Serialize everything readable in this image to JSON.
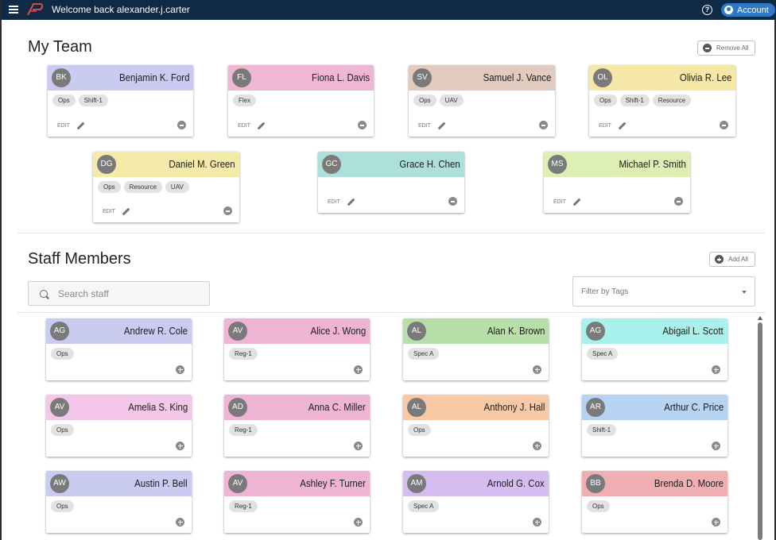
{
  "topbar": {
    "welcome": "Welcome back alexander.j.carter",
    "help_symbol": "?",
    "account_label": "Account",
    "bg_color": "#0f2a45",
    "accent": "#2f78c4"
  },
  "team": {
    "title": "My Team",
    "remove_all_label": "Remove All",
    "edit_label": "EDIT",
    "members": [
      {
        "initials": "BK",
        "name": "Benjamin K. Ford",
        "color": "#c9cbf0",
        "tags": [
          "Ops",
          "Shift-1"
        ]
      },
      {
        "initials": "FL",
        "name": "Fiona L. Davis",
        "color": "#efb6d6",
        "tags": [
          "Flex"
        ]
      },
      {
        "initials": "SV",
        "name": "Samuel J. Vance",
        "color": "#e1cbbf",
        "tags": [
          "Ops",
          "UAV"
        ]
      },
      {
        "initials": "OL",
        "name": "Olivia R. Lee",
        "color": "#f5e8a7",
        "tags": [
          "Ops",
          "Shift-1",
          "Resource"
        ]
      },
      {
        "initials": "DG",
        "name": "Daniel M. Green",
        "color": "#f5eba9",
        "tags": [
          "Ops",
          "Resource",
          "UAV"
        ]
      },
      {
        "initials": "GC",
        "name": "Grace H. Chen",
        "color": "#ade0da",
        "tags": []
      },
      {
        "initials": "MS",
        "name": "Michael P. Smith",
        "color": "#ddefb3",
        "tags": []
      }
    ]
  },
  "staff": {
    "title": "Staff Members",
    "add_all_label": "Add All",
    "search_placeholder": "Search staff",
    "filter_placeholder": "Filter by Tags",
    "members": [
      {
        "initials": "AG",
        "name": "Andrew R. Cole",
        "color": "#c9cbf0",
        "tags": [
          "Ops"
        ]
      },
      {
        "initials": "AV",
        "name": "Alice J. Wong",
        "color": "#efb3d3",
        "tags": [
          "Reg-1"
        ]
      },
      {
        "initials": "AL",
        "name": "Alan K. Brown",
        "color": "#b7dfa8",
        "tags": [
          "Spec A"
        ]
      },
      {
        "initials": "AG",
        "name": "Abigail L. Scott",
        "color": "#a9f1ec",
        "tags": [
          "Spec A"
        ]
      },
      {
        "initials": "AV",
        "name": "Amelia S. King",
        "color": "#f3c6ea",
        "tags": [
          "Ops"
        ]
      },
      {
        "initials": "AD",
        "name": "Anna C. Miller",
        "color": "#efb3d3",
        "tags": [
          "Reg-1"
        ]
      },
      {
        "initials": "AL",
        "name": "Anthony J. Hall",
        "color": "#f9c9a6",
        "tags": [
          "Ops"
        ]
      },
      {
        "initials": "AR",
        "name": "Arthur C. Price",
        "color": "#b7d3f2",
        "tags": [
          "Shift-1"
        ]
      },
      {
        "initials": "AW",
        "name": "Austin P. Bell",
        "color": "#c9cbf0",
        "tags": [
          "Ops"
        ]
      },
      {
        "initials": "AV",
        "name": "Ashley F. Turner",
        "color": "#efb3d3",
        "tags": [
          "Reg-1"
        ]
      },
      {
        "initials": "AM",
        "name": "Arnold G. Cox",
        "color": "#d6bdf1",
        "tags": [
          "Spec A"
        ]
      },
      {
        "initials": "BB",
        "name": "Brenda D. Moore",
        "color": "#f0afb3",
        "tags": [
          "Ops"
        ]
      }
    ]
  }
}
